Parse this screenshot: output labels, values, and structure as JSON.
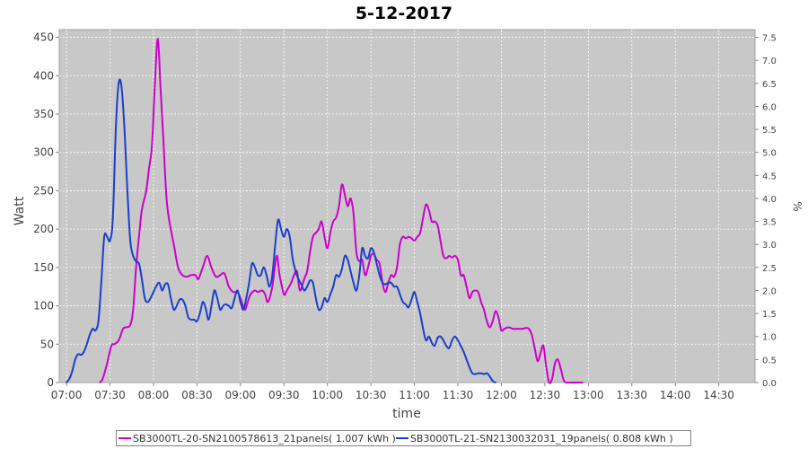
{
  "chart_data": {
    "type": "line",
    "title": "5-12-2017",
    "xlabel": "time",
    "ylabel": "Watt",
    "y2label": "%",
    "xlim": [
      "06:55",
      "14:55"
    ],
    "ylim": [
      0,
      460
    ],
    "y2lim": [
      0,
      7.667
    ],
    "x_ticks": [
      "07:00",
      "07:30",
      "08:00",
      "08:30",
      "09:00",
      "09:30",
      "10:00",
      "10:30",
      "11:00",
      "11:30",
      "12:00",
      "12:30",
      "13:00",
      "13:30",
      "14:00",
      "14:30"
    ],
    "y_ticks": [
      0,
      50,
      100,
      150,
      200,
      250,
      300,
      350,
      400,
      450
    ],
    "y2_ticks": [
      "0.0",
      "0.5",
      "1.0",
      "1.5",
      "2.0",
      "2.5",
      "3.0",
      "3.5",
      "4.0",
      "4.5",
      "5.0",
      "5.5",
      "6.0",
      "6.5",
      "7.0",
      "7.5"
    ],
    "grid": true,
    "legend_position": "bottom",
    "colors": {
      "plot_background": "#c8c8c8",
      "grid": "#ffffff"
    },
    "series": [
      {
        "name": "SB3000TL-20-SN2100578613_21panels( 1.007 kWh )",
        "color": "#cc00cc",
        "points": [
          [
            "07:23",
            0
          ],
          [
            "07:25",
            5
          ],
          [
            "07:28",
            25
          ],
          [
            "07:31",
            48
          ],
          [
            "07:33",
            50
          ],
          [
            "07:36",
            55
          ],
          [
            "07:39",
            70
          ],
          [
            "07:41",
            72
          ],
          [
            "07:44",
            75
          ],
          [
            "07:46",
            95
          ],
          [
            "07:48",
            150
          ],
          [
            "07:50",
            190
          ],
          [
            "07:52",
            225
          ],
          [
            "07:55",
            250
          ],
          [
            "07:57",
            280
          ],
          [
            "07:59",
            310
          ],
          [
            "08:01",
            390
          ],
          [
            "08:03",
            448
          ],
          [
            "08:05",
            380
          ],
          [
            "08:07",
            310
          ],
          [
            "08:09",
            240
          ],
          [
            "08:11",
            210
          ],
          [
            "08:14",
            180
          ],
          [
            "08:17",
            150
          ],
          [
            "08:20",
            140
          ],
          [
            "08:23",
            138
          ],
          [
            "08:26",
            140
          ],
          [
            "08:29",
            140
          ],
          [
            "08:31",
            135
          ],
          [
            "08:34",
            150
          ],
          [
            "08:37",
            165
          ],
          [
            "08:40",
            150
          ],
          [
            "08:43",
            138
          ],
          [
            "08:46",
            140
          ],
          [
            "08:49",
            142
          ],
          [
            "08:52",
            125
          ],
          [
            "08:55",
            118
          ],
          [
            "08:58",
            118
          ],
          [
            "09:00",
            110
          ],
          [
            "09:03",
            95
          ],
          [
            "09:05",
            105
          ],
          [
            "09:07",
            115
          ],
          [
            "09:10",
            120
          ],
          [
            "09:12",
            118
          ],
          [
            "09:15",
            120
          ],
          [
            "09:17",
            115
          ],
          [
            "09:19",
            105
          ],
          [
            "09:22",
            125
          ],
          [
            "09:25",
            165
          ],
          [
            "09:27",
            140
          ],
          [
            "09:30",
            115
          ],
          [
            "09:32",
            120
          ],
          [
            "09:35",
            130
          ],
          [
            "09:37",
            140
          ],
          [
            "09:39",
            145
          ],
          [
            "09:41",
            120
          ],
          [
            "09:44",
            135
          ],
          [
            "09:46",
            145
          ],
          [
            "09:48",
            170
          ],
          [
            "09:50",
            190
          ],
          [
            "09:52",
            195
          ],
          [
            "09:54",
            200
          ],
          [
            "09:56",
            210
          ],
          [
            "09:58",
            190
          ],
          [
            "10:00",
            175
          ],
          [
            "10:02",
            195
          ],
          [
            "10:04",
            210
          ],
          [
            "10:06",
            215
          ],
          [
            "10:08",
            230
          ],
          [
            "10:10",
            258
          ],
          [
            "10:12",
            245
          ],
          [
            "10:14",
            230
          ],
          [
            "10:16",
            240
          ],
          [
            "10:18",
            220
          ],
          [
            "10:20",
            170
          ],
          [
            "10:22",
            158
          ],
          [
            "10:24",
            160
          ],
          [
            "10:26",
            140
          ],
          [
            "10:28",
            150
          ],
          [
            "10:30",
            165
          ],
          [
            "10:32",
            168
          ],
          [
            "10:34",
            160
          ],
          [
            "10:36",
            155
          ],
          [
            "10:38",
            130
          ],
          [
            "10:40",
            118
          ],
          [
            "10:42",
            130
          ],
          [
            "10:44",
            140
          ],
          [
            "10:46",
            138
          ],
          [
            "10:48",
            150
          ],
          [
            "10:50",
            180
          ],
          [
            "10:52",
            190
          ],
          [
            "10:54",
            188
          ],
          [
            "10:56",
            190
          ],
          [
            "10:58",
            188
          ],
          [
            "11:00",
            185
          ],
          [
            "11:02",
            190
          ],
          [
            "11:04",
            195
          ],
          [
            "11:06",
            215
          ],
          [
            "11:08",
            232
          ],
          [
            "11:10",
            225
          ],
          [
            "11:12",
            210
          ],
          [
            "11:14",
            210
          ],
          [
            "11:16",
            205
          ],
          [
            "11:18",
            185
          ],
          [
            "11:20",
            165
          ],
          [
            "11:22",
            162
          ],
          [
            "11:24",
            165
          ],
          [
            "11:26",
            163
          ],
          [
            "11:28",
            165
          ],
          [
            "11:30",
            160
          ],
          [
            "11:32",
            140
          ],
          [
            "11:34",
            140
          ],
          [
            "11:36",
            125
          ],
          [
            "11:38",
            110
          ],
          [
            "11:40",
            118
          ],
          [
            "11:42",
            120
          ],
          [
            "11:44",
            118
          ],
          [
            "11:46",
            105
          ],
          [
            "11:48",
            95
          ],
          [
            "11:50",
            80
          ],
          [
            "11:52",
            72
          ],
          [
            "11:54",
            80
          ],
          [
            "11:56",
            93
          ],
          [
            "11:58",
            85
          ],
          [
            "12:00",
            68
          ],
          [
            "12:02",
            70
          ],
          [
            "12:05",
            72
          ],
          [
            "12:08",
            70
          ],
          [
            "12:11",
            70
          ],
          [
            "12:14",
            70
          ],
          [
            "12:17",
            71
          ],
          [
            "12:19",
            70
          ],
          [
            "12:21",
            62
          ],
          [
            "12:23",
            45
          ],
          [
            "12:25",
            28
          ],
          [
            "12:27",
            38
          ],
          [
            "12:29",
            48
          ],
          [
            "12:31",
            20
          ],
          [
            "12:33",
            0
          ],
          [
            "12:35",
            5
          ],
          [
            "12:37",
            25
          ],
          [
            "12:39",
            30
          ],
          [
            "12:41",
            18
          ],
          [
            "12:43",
            3
          ],
          [
            "12:45",
            0
          ],
          [
            "12:48",
            0
          ],
          [
            "12:50",
            0
          ],
          [
            "12:52",
            0
          ],
          [
            "12:54",
            0
          ],
          [
            "12:56",
            0
          ]
        ]
      },
      {
        "name": "SB3000TL-21-SN2130032031_19panels( 0.808 kWh )",
        "color": "#1a3fcc",
        "points": [
          [
            "07:00",
            0
          ],
          [
            "07:02",
            5
          ],
          [
            "07:04",
            15
          ],
          [
            "07:06",
            30
          ],
          [
            "07:08",
            37
          ],
          [
            "07:10",
            36
          ],
          [
            "07:12",
            40
          ],
          [
            "07:14",
            50
          ],
          [
            "07:16",
            62
          ],
          [
            "07:18",
            70
          ],
          [
            "07:20",
            68
          ],
          [
            "07:22",
            80
          ],
          [
            "07:24",
            130
          ],
          [
            "07:26",
            190
          ],
          [
            "07:28",
            190
          ],
          [
            "07:30",
            185
          ],
          [
            "07:32",
            215
          ],
          [
            "07:34",
            330
          ],
          [
            "07:36",
            390
          ],
          [
            "07:38",
            385
          ],
          [
            "07:40",
            330
          ],
          [
            "07:42",
            250
          ],
          [
            "07:44",
            185
          ],
          [
            "07:46",
            165
          ],
          [
            "07:48",
            158
          ],
          [
            "07:50",
            155
          ],
          [
            "07:52",
            135
          ],
          [
            "07:54",
            110
          ],
          [
            "07:56",
            105
          ],
          [
            "07:58",
            110
          ],
          [
            "08:00",
            118
          ],
          [
            "08:02",
            126
          ],
          [
            "08:04",
            130
          ],
          [
            "08:06",
            120
          ],
          [
            "08:08",
            128
          ],
          [
            "08:10",
            128
          ],
          [
            "08:12",
            110
          ],
          [
            "08:14",
            95
          ],
          [
            "08:16",
            100
          ],
          [
            "08:18",
            108
          ],
          [
            "08:20",
            108
          ],
          [
            "08:22",
            100
          ],
          [
            "08:24",
            85
          ],
          [
            "08:26",
            82
          ],
          [
            "08:28",
            82
          ],
          [
            "08:30",
            80
          ],
          [
            "08:32",
            90
          ],
          [
            "08:34",
            105
          ],
          [
            "08:36",
            97
          ],
          [
            "08:38",
            82
          ],
          [
            "08:40",
            100
          ],
          [
            "08:42",
            120
          ],
          [
            "08:44",
            110
          ],
          [
            "08:46",
            95
          ],
          [
            "08:48",
            100
          ],
          [
            "08:50",
            102
          ],
          [
            "08:52",
            100
          ],
          [
            "08:54",
            97
          ],
          [
            "08:56",
            110
          ],
          [
            "08:58",
            120
          ],
          [
            "09:00",
            105
          ],
          [
            "09:02",
            95
          ],
          [
            "09:04",
            110
          ],
          [
            "09:06",
            130
          ],
          [
            "09:08",
            155
          ],
          [
            "09:10",
            150
          ],
          [
            "09:12",
            140
          ],
          [
            "09:14",
            140
          ],
          [
            "09:16",
            150
          ],
          [
            "09:18",
            140
          ],
          [
            "09:20",
            125
          ],
          [
            "09:22",
            140
          ],
          [
            "09:24",
            180
          ],
          [
            "09:26",
            212
          ],
          [
            "09:28",
            200
          ],
          [
            "09:30",
            190
          ],
          [
            "09:32",
            200
          ],
          [
            "09:34",
            190
          ],
          [
            "09:36",
            162
          ],
          [
            "09:38",
            145
          ],
          [
            "09:40",
            135
          ],
          [
            "09:42",
            128
          ],
          [
            "09:44",
            120
          ],
          [
            "09:46",
            125
          ],
          [
            "09:48",
            133
          ],
          [
            "09:50",
            130
          ],
          [
            "09:52",
            110
          ],
          [
            "09:54",
            95
          ],
          [
            "09:56",
            98
          ],
          [
            "09:58",
            110
          ],
          [
            "10:00",
            105
          ],
          [
            "10:02",
            115
          ],
          [
            "10:04",
            125
          ],
          [
            "10:06",
            140
          ],
          [
            "10:08",
            138
          ],
          [
            "10:10",
            148
          ],
          [
            "10:12",
            165
          ],
          [
            "10:14",
            160
          ],
          [
            "10:16",
            145
          ],
          [
            "10:18",
            130
          ],
          [
            "10:20",
            120
          ],
          [
            "10:22",
            140
          ],
          [
            "10:24",
            175
          ],
          [
            "10:26",
            165
          ],
          [
            "10:28",
            162
          ],
          [
            "10:30",
            175
          ],
          [
            "10:32",
            170
          ],
          [
            "10:34",
            155
          ],
          [
            "10:36",
            140
          ],
          [
            "10:38",
            130
          ],
          [
            "10:40",
            128
          ],
          [
            "10:42",
            130
          ],
          [
            "10:44",
            130
          ],
          [
            "10:46",
            125
          ],
          [
            "10:48",
            125
          ],
          [
            "10:50",
            115
          ],
          [
            "10:52",
            105
          ],
          [
            "10:54",
            102
          ],
          [
            "10:56",
            98
          ],
          [
            "10:58",
            108
          ],
          [
            "11:00",
            118
          ],
          [
            "11:02",
            105
          ],
          [
            "11:04",
            90
          ],
          [
            "11:06",
            70
          ],
          [
            "11:08",
            55
          ],
          [
            "11:10",
            60
          ],
          [
            "11:12",
            52
          ],
          [
            "11:14",
            48
          ],
          [
            "11:16",
            58
          ],
          [
            "11:18",
            60
          ],
          [
            "11:20",
            55
          ],
          [
            "11:22",
            48
          ],
          [
            "11:24",
            45
          ],
          [
            "11:26",
            55
          ],
          [
            "11:28",
            60
          ],
          [
            "11:30",
            55
          ],
          [
            "11:32",
            48
          ],
          [
            "11:34",
            40
          ],
          [
            "11:36",
            30
          ],
          [
            "11:38",
            20
          ],
          [
            "11:40",
            12
          ],
          [
            "11:42",
            11
          ],
          [
            "11:44",
            12
          ],
          [
            "11:46",
            12
          ],
          [
            "11:48",
            11
          ],
          [
            "11:50",
            12
          ],
          [
            "11:52",
            8
          ],
          [
            "11:54",
            2
          ],
          [
            "11:56",
            0
          ]
        ]
      }
    ]
  }
}
